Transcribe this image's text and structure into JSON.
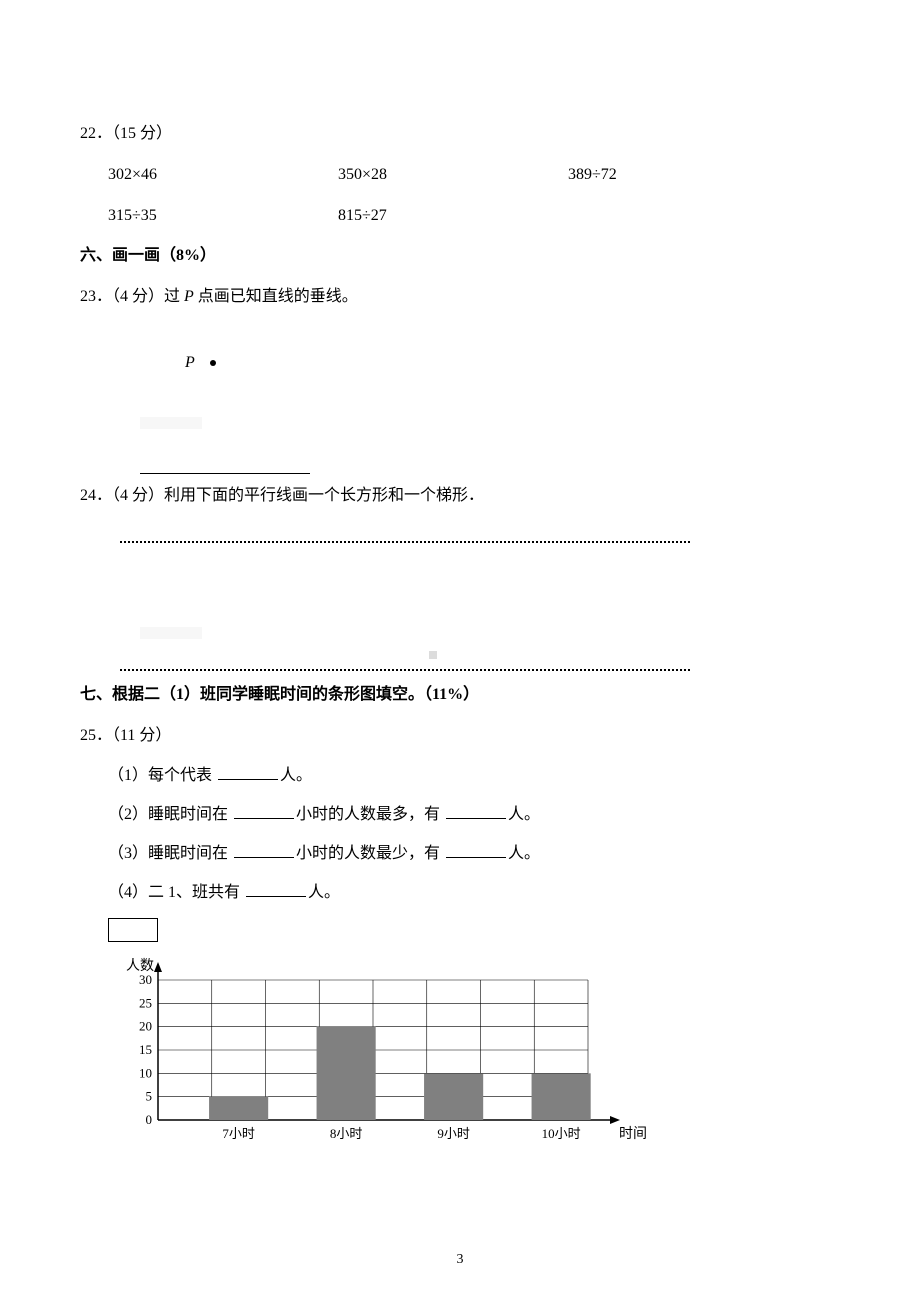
{
  "q22": {
    "number": "22．（15 分）",
    "expr1": "302×46",
    "expr2": "350×28",
    "expr3": "389÷72",
    "expr4": "315÷35",
    "expr5": "815÷27"
  },
  "section6": "六、画一画（8%）",
  "q23": {
    "text_before": "23．（4 分）过 ",
    "var": "P",
    "text_after": " 点画已知直线的垂线。",
    "point_label": "P"
  },
  "q24": {
    "text": "24．（4 分）利用下面的平行线画一个长方形和一个梯形．"
  },
  "section7": "七、根据二（1）班同学睡眠时间的条形图填空。（11%）",
  "q25": {
    "number": "25．（11 分）",
    "sub1_a": "（1）每个代表 ",
    "sub1_b": "人。",
    "sub2_a": "（2）睡眠时间在 ",
    "sub2_b": "小时的人数最多，有 ",
    "sub2_c": "人。",
    "sub3_a": "（3）睡眠时间在 ",
    "sub3_b": "小时的人数最少，有 ",
    "sub3_c": "人。",
    "sub4_a": "（4）二 1、班共有 ",
    "sub4_b": "人。"
  },
  "chart": {
    "type": "bar",
    "y_label": "人数",
    "x_label": "时间",
    "categories": [
      "7小时",
      "8小时",
      "9小时",
      "10小时"
    ],
    "values": [
      5,
      20,
      10,
      10
    ],
    "y_ticks": [
      0,
      5,
      10,
      15,
      20,
      25,
      30
    ],
    "ylim": [
      0,
      30
    ],
    "bar_color": "#808080",
    "grid_color": "#000000",
    "background_color": "#ffffff",
    "axis_color": "#000000",
    "label_fontsize": 14,
    "tick_fontsize": 13,
    "bar_width_ratio": 0.55
  },
  "page_number": "3"
}
